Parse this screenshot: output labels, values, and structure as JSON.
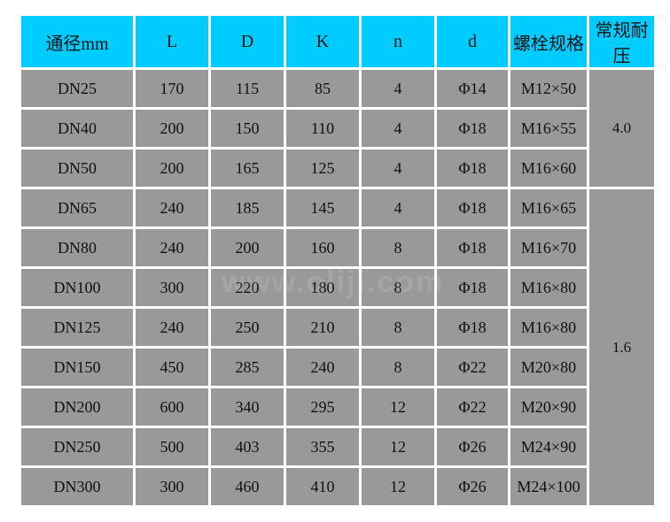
{
  "table": {
    "headers": [
      "通径mm",
      "L",
      "D",
      "K",
      "n",
      "d",
      "螺栓规格",
      "常规耐压"
    ],
    "rows": [
      [
        "DN25",
        "170",
        "115",
        "85",
        "4",
        "Φ14",
        "M12×50"
      ],
      [
        "DN40",
        "200",
        "150",
        "110",
        "4",
        "Φ18",
        "M16×55"
      ],
      [
        "DN50",
        "200",
        "165",
        "125",
        "4",
        "Φ18",
        "M16×60"
      ],
      [
        "DN65",
        "240",
        "185",
        "145",
        "4",
        "Φ18",
        "M16×65"
      ],
      [
        "DN80",
        "240",
        "200",
        "160",
        "8",
        "Φ18",
        "M16×70"
      ],
      [
        "DN100",
        "300",
        "220",
        "180",
        "8",
        "Φ18",
        "M16×80"
      ],
      [
        "DN125",
        "240",
        "250",
        "210",
        "8",
        "Φ18",
        "M16×80"
      ],
      [
        "DN150",
        "450",
        "285",
        "240",
        "8",
        "Φ22",
        "M20×80"
      ],
      [
        "DN200",
        "600",
        "340",
        "295",
        "12",
        "Φ22",
        "M20×90"
      ],
      [
        "DN250",
        "500",
        "403",
        "355",
        "12",
        "Φ26",
        "M24×90"
      ],
      [
        "DN300",
        "300",
        "460",
        "410",
        "12",
        "Φ26",
        "M24×100"
      ]
    ],
    "pressure": [
      "4.0",
      "1.6"
    ]
  },
  "watermark": "www.oliji.com",
  "colors": {
    "header": "#00ccff",
    "cell": "#999999"
  }
}
